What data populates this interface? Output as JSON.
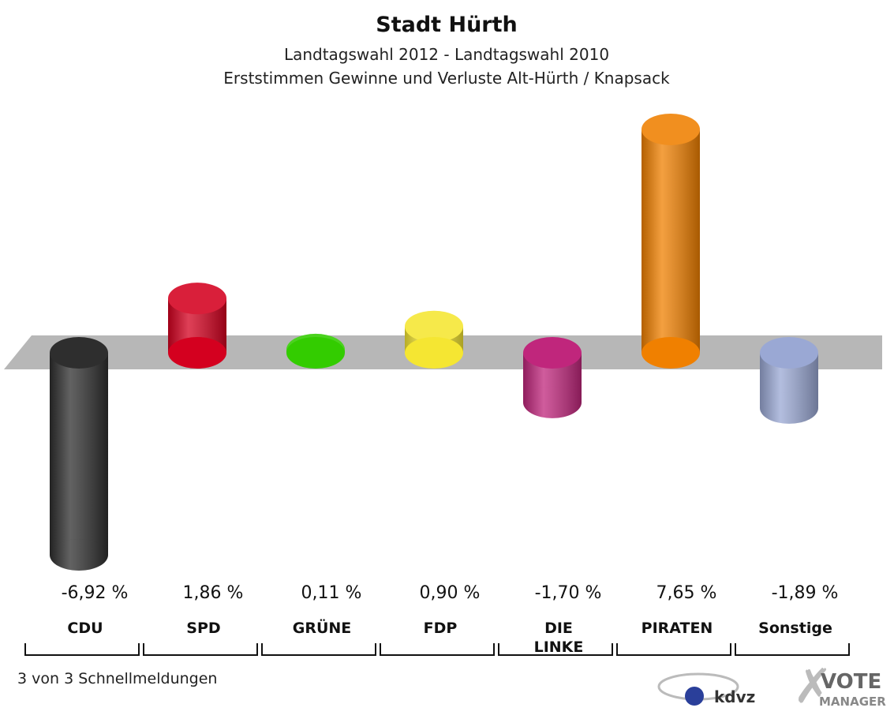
{
  "chart_data": {
    "type": "bar",
    "title": "Stadt Hürth",
    "subtitle": [
      "Landtagswahl 2012 - Landtagswahl 2010",
      "Erststimmen Gewinne und Verluste Alt-Hürth / Knapsack"
    ],
    "categories": [
      "CDU",
      "SPD",
      "GRÜNE",
      "FDP",
      "DIE\nLINKE",
      "PIRATEN",
      "Sonstige"
    ],
    "values": [
      -6.92,
      1.86,
      0.11,
      0.9,
      -1.7,
      7.65,
      -1.89
    ],
    "value_labels": [
      "-6,92 %",
      "1,86 %",
      "0,11 %",
      "0,90 %",
      "-1,70 %",
      "7,65 %",
      "-1,89 %"
    ],
    "colors": [
      "#2e2e2e",
      "#d4001f",
      "#33cc00",
      "#f5e632",
      "#c0267c",
      "#f08000",
      "#9aa8d4"
    ],
    "footnote": "3 von 3 Schnellmeldungen",
    "logos": [
      "kdvz",
      "VOTE",
      "MANAGER"
    ]
  }
}
